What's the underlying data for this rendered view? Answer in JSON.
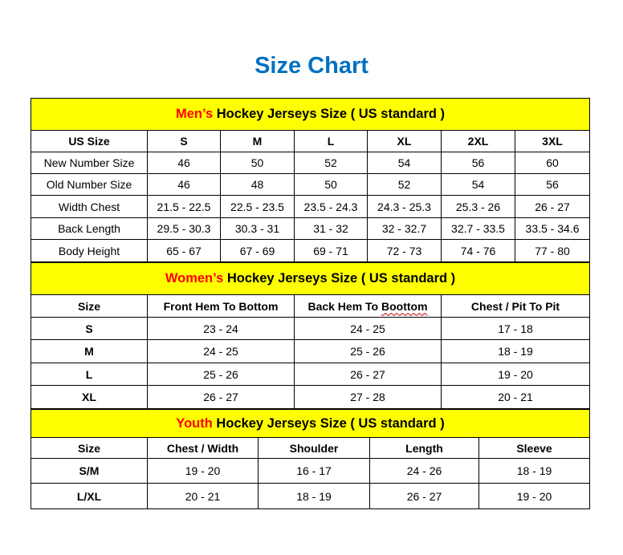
{
  "title": "Size Chart",
  "colors": {
    "title": "#0070c0",
    "section_bg": "#ffff00",
    "accent": "#ff0000"
  },
  "men": {
    "heading_accent": "Men’s",
    "heading_rest": " Hockey Jerseys Size ( US standard )",
    "headers": [
      "US Size",
      "S",
      "M",
      "L",
      "XL",
      "2XL",
      "3XL"
    ],
    "rows": [
      [
        "New Number Size",
        "46",
        "50",
        "52",
        "54",
        "56",
        "60"
      ],
      [
        "Old Number Size",
        "46",
        "48",
        "50",
        "52",
        "54",
        "56"
      ],
      [
        "Width Chest",
        "21.5 - 22.5",
        "22.5 - 23.5",
        "23.5 - 24.3",
        "24.3 - 25.3",
        "25.3 - 26",
        "26 - 27"
      ],
      [
        "Back Length",
        "29.5 - 30.3",
        "30.3 - 31",
        "31 - 32",
        "32 - 32.7",
        "32.7 - 33.5",
        "33.5 - 34.6"
      ],
      [
        "Body Height",
        "65 - 67",
        "67 - 69",
        "69 - 71",
        "72 - 73",
        "74 - 76",
        "77 - 80"
      ]
    ]
  },
  "women": {
    "heading_accent": "Women’s",
    "heading_rest": " Hockey Jerseys Size ( US standard )",
    "headers": [
      "Size",
      "Front Hem To Bottom",
      "Back Hem To Boottom",
      "Chest / Pit To Pit"
    ],
    "rows": [
      [
        "S",
        "23 - 24",
        "24 - 25",
        "17 - 18"
      ],
      [
        "M",
        "24 - 25",
        "25 - 26",
        "18 - 19"
      ],
      [
        "L",
        "25 - 26",
        "26 - 27",
        "19 - 20"
      ],
      [
        "XL",
        "26 - 27",
        "27 - 28",
        "20 - 21"
      ]
    ]
  },
  "youth": {
    "heading_accent": "Youth",
    "heading_rest": " Hockey Jerseys Size ( US standard )",
    "headers": [
      "Size",
      "Chest / Width",
      "Shoulder",
      "Length",
      "Sleeve"
    ],
    "rows": [
      [
        "S/M",
        "19 - 20",
        "16 - 17",
        "24 - 26",
        "18 - 19"
      ],
      [
        "L/XL",
        "20 - 21",
        "18 - 19",
        "26 - 27",
        "19 - 20"
      ]
    ]
  }
}
